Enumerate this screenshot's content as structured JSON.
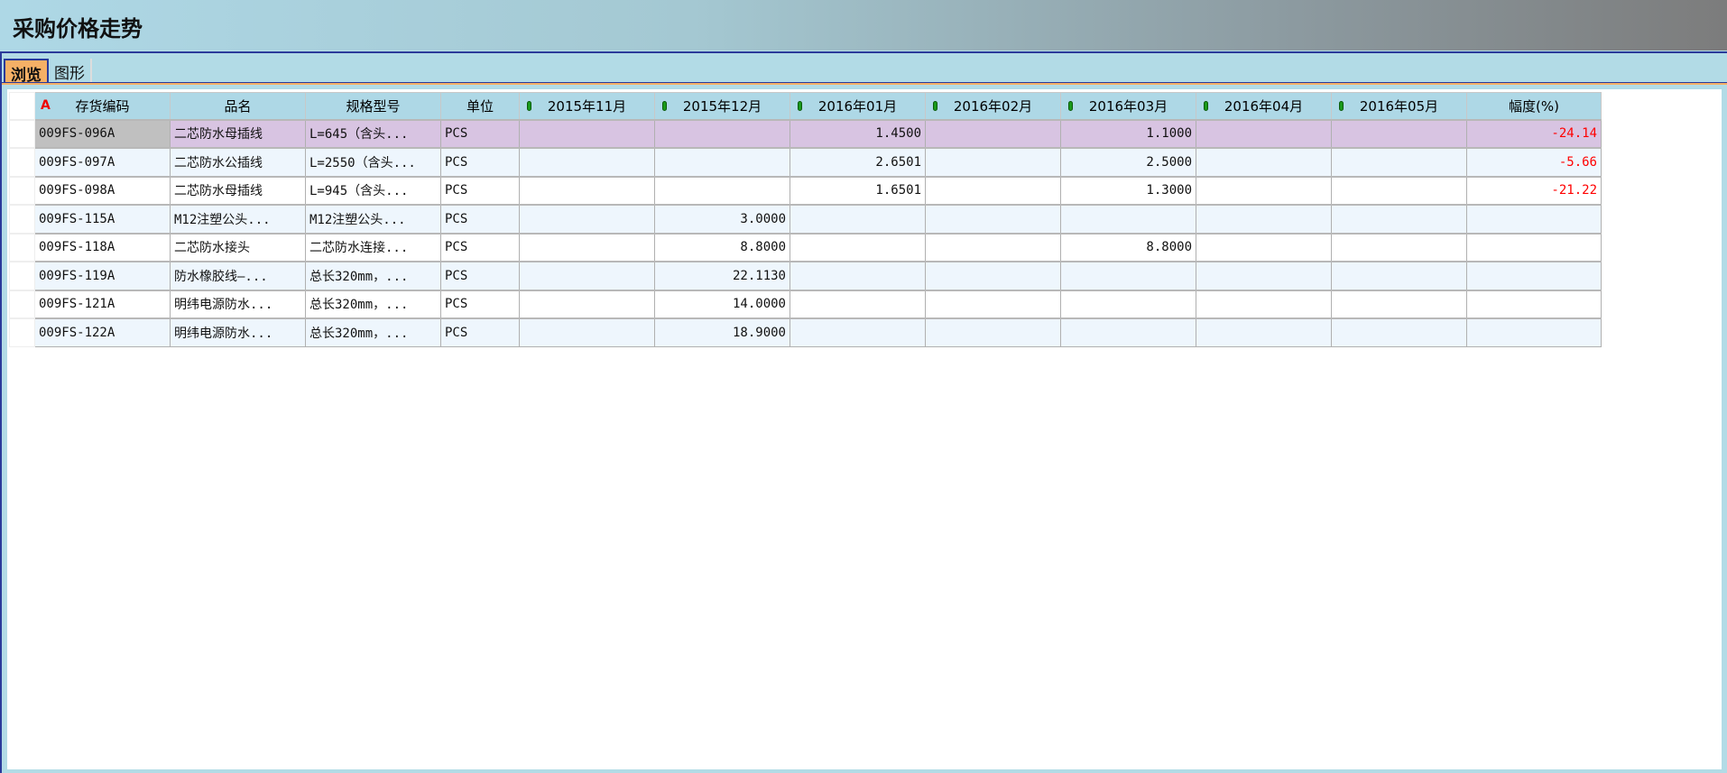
{
  "window": {
    "title": "采购价格走势"
  },
  "tabs": [
    {
      "label": "浏览",
      "active": true
    },
    {
      "label": "图形",
      "active": false
    }
  ],
  "colors": {
    "selected_row": "#d8c4e2",
    "negative": "#ff0000",
    "header": "#aed8e6"
  },
  "table": {
    "columns": [
      "存货编码",
      "品名",
      "规格型号",
      "单位",
      "2015年11月",
      "2015年12月",
      "2016年01月",
      "2016年02月",
      "2016年03月",
      "2016年04月",
      "2016年05月",
      "幅度(%)"
    ],
    "sort_icon": "sort-ascending-A-icon",
    "month_icon": "green-marker-icon",
    "rows": [
      [
        "009FS-096A",
        "二芯防水母插线",
        "L=645（含头...",
        "PCS",
        "",
        "",
        "1.4500",
        "",
        "1.1000",
        "",
        "",
        "-24.14"
      ],
      [
        "009FS-097A",
        "二芯防水公插线",
        "L=2550（含头...",
        "PCS",
        "",
        "",
        "2.6501",
        "",
        "2.5000",
        "",
        "",
        "-5.66"
      ],
      [
        "009FS-098A",
        "二芯防水母插线",
        "L=945（含头...",
        "PCS",
        "",
        "",
        "1.6501",
        "",
        "1.3000",
        "",
        "",
        "-21.22"
      ],
      [
        "009FS-115A",
        "M12注塑公头...",
        "M12注塑公头...",
        "PCS",
        "",
        "3.0000",
        "",
        "",
        "",
        "",
        "",
        ""
      ],
      [
        "009FS-118A",
        "二芯防水接头",
        "二芯防水连接...",
        "PCS",
        "",
        "8.8000",
        "",
        "",
        "8.8000",
        "",
        "",
        ""
      ],
      [
        "009FS-119A",
        "防水橡胶线—...",
        "总长320mm，...",
        "PCS",
        "",
        "22.1130",
        "",
        "",
        "",
        "",
        "",
        ""
      ],
      [
        "009FS-121A",
        "明纬电源防水...",
        "总长320mm，...",
        "PCS",
        "",
        "14.0000",
        "",
        "",
        "",
        "",
        "",
        ""
      ],
      [
        "009FS-122A",
        "明纬电源防水...",
        "总长320mm，...",
        "PCS",
        "",
        "18.9000",
        "",
        "",
        "",
        "",
        "",
        ""
      ]
    ]
  }
}
